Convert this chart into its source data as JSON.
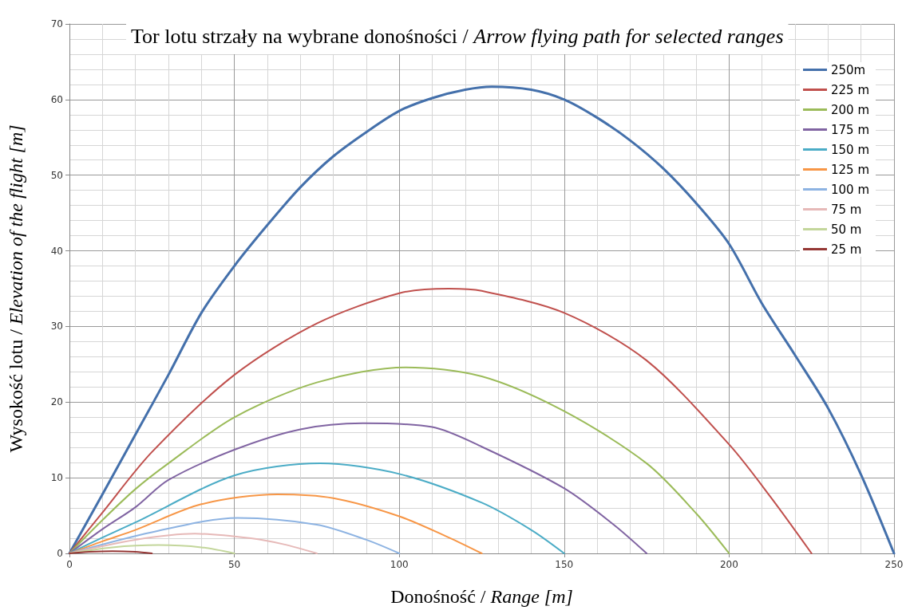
{
  "chart_data": {
    "type": "line",
    "title": "Tor lotu strzały na wybrane donośności / Arrow flying path for selected ranges",
    "xlabel": "Donośność / Range [m]",
    "ylabel": "Wysokość lotu / Elevation of the flight [m]",
    "xlim": [
      0,
      250
    ],
    "xticks": [
      0,
      50,
      100,
      150,
      200,
      250
    ],
    "ylim": [
      0,
      70
    ],
    "yticks": [
      0,
      10,
      20,
      30,
      40,
      50,
      60,
      70
    ],
    "grid": true,
    "legend": "top right",
    "marker": "none",
    "line_style": "solid",
    "series": [
      {
        "name": "250m",
        "color": "#4470ab",
        "x": [
          0,
          10,
          20,
          30,
          40,
          50,
          60,
          70,
          80,
          90,
          100,
          110,
          120,
          128,
          140,
          150,
          160,
          170,
          180,
          190,
          200,
          210,
          220,
          230,
          240,
          250
        ],
        "values": [
          0,
          7.8,
          15.7,
          23.6,
          31.8,
          38,
          43.4,
          48.4,
          52.5,
          55.7,
          58.5,
          60.2,
          61.3,
          61.7,
          61.3,
          60,
          57.6,
          54.6,
          50.9,
          46.3,
          40.9,
          33,
          26.2,
          19.2,
          10.4,
          0
        ]
      },
      {
        "name": "225 m",
        "color": "#c0504d",
        "x": [
          0,
          10,
          25,
          50,
          75,
          100,
          115,
          125,
          150,
          175,
          200,
          212.5,
          225
        ],
        "values": [
          0,
          5.4,
          13.4,
          23.6,
          30.4,
          34.4,
          35,
          34.7,
          31.8,
          25.5,
          14.4,
          7.5,
          0
        ]
      },
      {
        "name": "200 m",
        "color": "#9bbb59",
        "x": [
          0,
          10,
          20,
          30,
          50,
          75,
          102,
          125,
          150,
          175,
          190,
          200
        ],
        "values": [
          0,
          4.4,
          8.5,
          11.9,
          18,
          22.6,
          24.6,
          23.4,
          18.8,
          11.9,
          5.3,
          0
        ]
      },
      {
        "name": "175 m",
        "color": "#8064a2",
        "x": [
          0,
          10,
          20,
          30,
          50,
          70,
          89,
          110,
          125,
          150,
          165,
          175
        ],
        "values": [
          0,
          3.2,
          6.1,
          9.7,
          13.7,
          16.4,
          17.2,
          16.7,
          14.1,
          8.6,
          3.8,
          0
        ]
      },
      {
        "name": "150 m",
        "color": "#4bacc6",
        "x": [
          0,
          10,
          20,
          50,
          76,
          100,
          125,
          140,
          150
        ],
        "values": [
          0,
          2.1,
          4.1,
          10.3,
          11.9,
          10.5,
          6.7,
          3.1,
          0
        ]
      },
      {
        "name": "125 m",
        "color": "#f79646",
        "x": [
          0,
          10,
          20,
          40,
          63,
          80,
          100,
          115,
          125
        ],
        "values": [
          0,
          1.6,
          3.1,
          6.5,
          7.8,
          7.3,
          4.9,
          2.1,
          0
        ]
      },
      {
        "name": "100 m",
        "color": "#8db3e2",
        "x": [
          0,
          25,
          51,
          75,
          90,
          100
        ],
        "values": [
          0,
          2.8,
          4.7,
          3.8,
          1.8,
          0
        ]
      },
      {
        "name": "75 m",
        "color": "#e6b9b8",
        "x": [
          0,
          20,
          38,
          55,
          65,
          75
        ],
        "values": [
          0,
          1.8,
          2.6,
          2,
          1.2,
          0
        ]
      },
      {
        "name": "50 m",
        "color": "#c3d69b",
        "x": [
          0,
          13,
          27,
          40,
          50
        ],
        "values": [
          0,
          0.8,
          1.1,
          0.8,
          0
        ]
      },
      {
        "name": "25 m",
        "color": "#953735",
        "x": [
          0,
          6,
          13,
          20,
          25
        ],
        "values": [
          0,
          0.2,
          0.3,
          0.2,
          0
        ]
      }
    ]
  }
}
